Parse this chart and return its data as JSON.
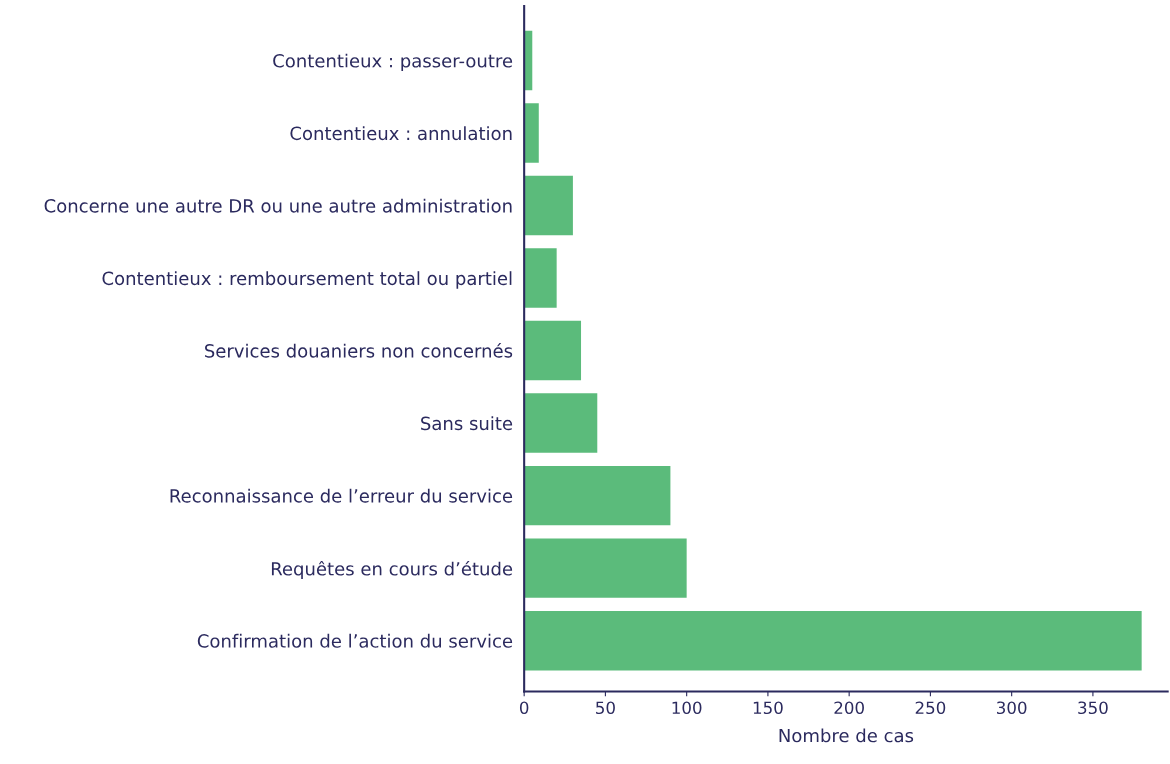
{
  "chart_data": {
    "type": "bar",
    "orientation": "horizontal",
    "xlabel": "Nombre de cas",
    "categories": [
      "Contentieux : passer-outre",
      "Contentieux : annulation",
      "Concerne une autre DR ou une autre administration",
      "Contentieux : remboursement total ou partiel",
      "Services douaniers non concernés",
      "Sans suite",
      "Reconnaissance de l’erreur du service",
      "Requêtes en cours d’étude",
      "Confirmation de l’action du service"
    ],
    "values": [
      5,
      9,
      30,
      20,
      35,
      45,
      90,
      100,
      380
    ],
    "color": "#5bbb7b",
    "xlim": [
      0,
      396
    ],
    "xticks": [
      0,
      50,
      100,
      150,
      200,
      250,
      300,
      350
    ],
    "grid": false
  }
}
